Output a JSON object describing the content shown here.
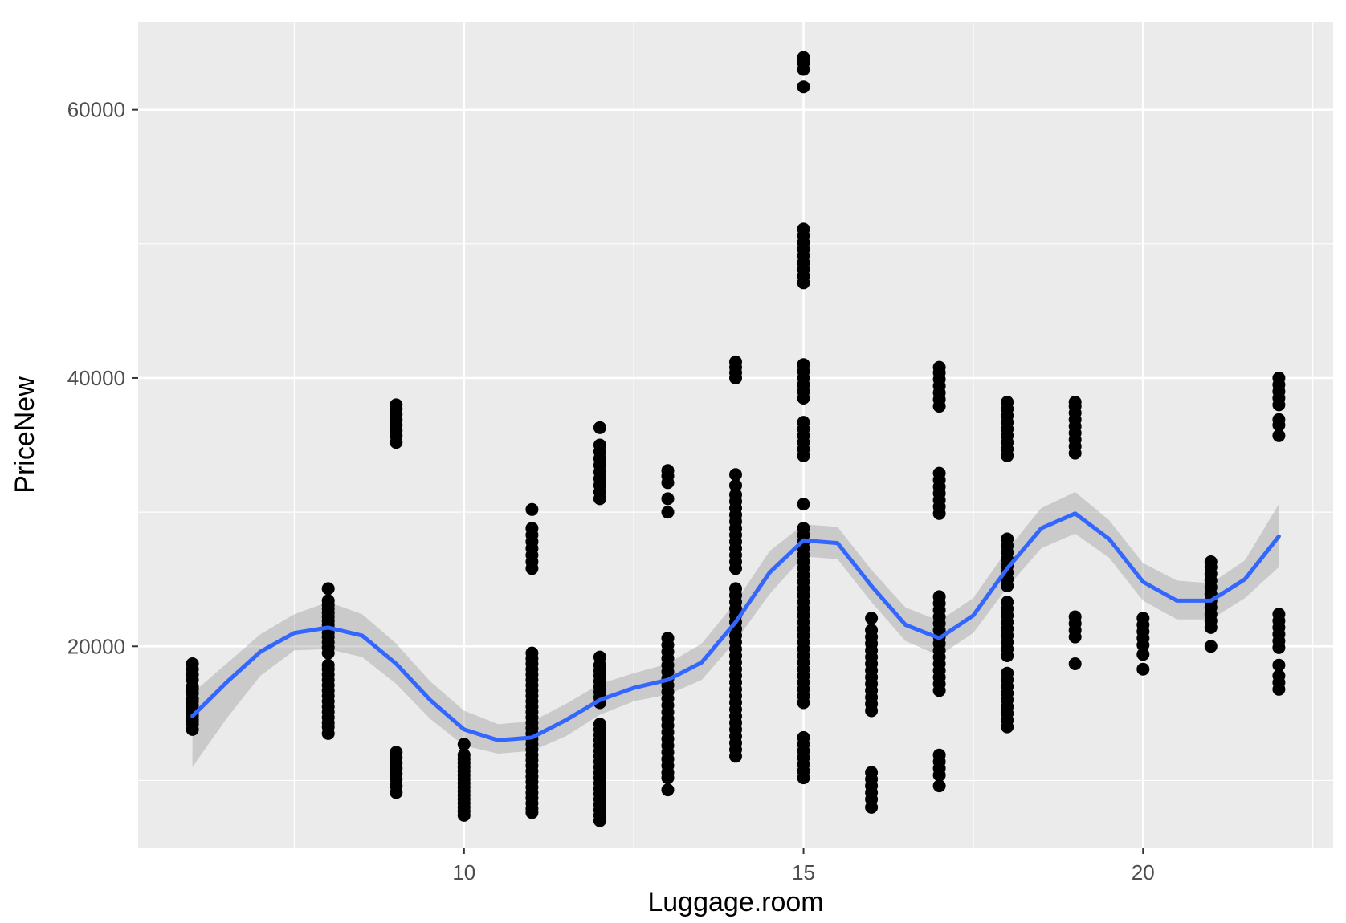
{
  "chart_data": {
    "type": "scatter",
    "title": "",
    "xlabel": "Luggage.room",
    "ylabel": "PriceNew",
    "xlim": [
      5.2,
      22.8
    ],
    "ylim": [
      5000,
      66500
    ],
    "x_ticks": [
      10,
      15,
      20
    ],
    "x_tick_labels": [
      "10",
      "15",
      "20"
    ],
    "y_ticks": [
      20000,
      40000,
      60000
    ],
    "y_tick_labels": [
      "20000",
      "40000",
      "60000"
    ],
    "x_minor_breaks": [
      7.5,
      12.5,
      17.5,
      22.5
    ],
    "y_minor_breaks": [
      10000,
      30000,
      50000
    ],
    "grid": true,
    "legend": "none",
    "colors": {
      "panel_background": "#ebebeb",
      "grid": "#ffffff",
      "points": "#000000",
      "smooth_line": "#3366ff",
      "confidence_band": "#999999"
    },
    "series": [
      {
        "type": "points",
        "groups": [
          {
            "x": 6,
            "values": [
              13800,
              14200,
              14500,
              14800,
              15000,
              15300,
              15600,
              15900,
              16100,
              16500,
              16800,
              17000,
              17500,
              17900,
              18300,
              18700
            ]
          },
          {
            "x": 8,
            "values": [
              13500,
              14000,
              14300,
              14700,
              15100,
              15500,
              15900,
              16300,
              16700,
              17100,
              17500,
              17900,
              18300,
              18600,
              19500,
              19900,
              20300,
              20700,
              21000,
              21300,
              21600,
              21900,
              22200,
              22500,
              22800,
              23100,
              23400,
              24300
            ]
          },
          {
            "x": 9,
            "values": [
              9100,
              9600,
              10100,
              10500,
              10900,
              11300,
              11700,
              12100,
              35200,
              35700,
              36100,
              36500,
              36900,
              37300,
              37700,
              38000
            ]
          },
          {
            "x": 10,
            "values": [
              7400,
              7700,
              8000,
              8300,
              8600,
              8900,
              9200,
              9500,
              9800,
              10100,
              10400,
              10700,
              11000,
              11300,
              11600,
              11900,
              12700
            ]
          },
          {
            "x": 11,
            "values": [
              7600,
              7900,
              8300,
              8700,
              9100,
              9500,
              9900,
              10300,
              10700,
              11100,
              11500,
              11900,
              12300,
              12700,
              13100,
              13500,
              13900,
              14300,
              14700,
              15100,
              15500,
              15900,
              16300,
              16700,
              17100,
              17500,
              17900,
              18300,
              18700,
              19100,
              19500,
              25800,
              26300,
              26800,
              27300,
              27800,
              28300,
              28800,
              30200
            ]
          },
          {
            "x": 12,
            "values": [
              7000,
              7400,
              7800,
              8200,
              8600,
              9000,
              9400,
              9800,
              10200,
              10600,
              11000,
              11400,
              11800,
              12200,
              12600,
              13000,
              13400,
              13800,
              14200,
              15800,
              16200,
              16600,
              17000,
              17400,
              17800,
              18200,
              18600,
              19200,
              31000,
              31500,
              32000,
              32500,
              33000,
              33500,
              34000,
              34500,
              35000,
              36300
            ]
          },
          {
            "x": 13,
            "values": [
              9300,
              10200,
              10600,
              11100,
              11600,
              12100,
              12600,
              13100,
              13600,
              14100,
              14600,
              15100,
              15600,
              16100,
              16600,
              17100,
              17600,
              18100,
              18600,
              19100,
              19600,
              20100,
              20600,
              30000,
              31000,
              32200,
              32700,
              33100
            ]
          },
          {
            "x": 14,
            "values": [
              11800,
              12300,
              12800,
              13300,
              13800,
              14300,
              14800,
              15300,
              15800,
              16300,
              16800,
              17300,
              17800,
              18300,
              18800,
              19300,
              19800,
              20300,
              20800,
              21300,
              21800,
              22300,
              22800,
              23300,
              23800,
              24300,
              25800,
              26300,
              26800,
              27300,
              27800,
              28300,
              28800,
              29300,
              29800,
              30300,
              30800,
              31300,
              32000,
              32800,
              40000,
              40400,
              40800,
              41200
            ]
          },
          {
            "x": 15,
            "values": [
              10200,
              10700,
              11200,
              11700,
              12200,
              12700,
              13200,
              15800,
              16300,
              16800,
              17300,
              17800,
              18300,
              18800,
              19300,
              19800,
              20300,
              20800,
              21300,
              21800,
              22300,
              22800,
              23300,
              23800,
              24300,
              24800,
              25300,
              25800,
              26300,
              26800,
              27300,
              27800,
              28300,
              28800,
              30600,
              34200,
              34700,
              35200,
              35700,
              36200,
              36700,
              38500,
              39000,
              39500,
              40000,
              40500,
              41000,
              47100,
              47600,
              48100,
              48600,
              49100,
              49600,
              50100,
              50600,
              51100,
              61700,
              63000,
              63500,
              63900
            ]
          },
          {
            "x": 16,
            "values": [
              8000,
              8600,
              9100,
              9600,
              10100,
              10600,
              15200,
              15700,
              16200,
              16700,
              17200,
              17700,
              18200,
              18700,
              19200,
              19700,
              20200,
              20700,
              21200,
              22100
            ]
          },
          {
            "x": 17,
            "values": [
              9600,
              10400,
              10900,
              11400,
              11900,
              16700,
              17200,
              17700,
              18200,
              18700,
              19200,
              19700,
              20200,
              20700,
              21200,
              21700,
              22200,
              22700,
              23200,
              23700,
              29900,
              30400,
              30900,
              31400,
              31900,
              32400,
              32900,
              37900,
              38400,
              38900,
              39400,
              39900,
              40400,
              40800
            ]
          },
          {
            "x": 18,
            "values": [
              14000,
              14500,
              15000,
              15500,
              16000,
              16500,
              17000,
              17500,
              18000,
              19300,
              19800,
              20300,
              20800,
              21300,
              21800,
              22300,
              22800,
              23300,
              24500,
              25000,
              25500,
              26000,
              26500,
              27000,
              27500,
              28000,
              34200,
              34700,
              35200,
              35700,
              36200,
              36700,
              37200,
              37700,
              38200
            ]
          },
          {
            "x": 19,
            "values": [
              18700,
              20700,
              21200,
              21700,
              22200,
              34400,
              34900,
              35400,
              35900,
              36400,
              36900,
              37400,
              37900,
              38200
            ]
          },
          {
            "x": 20,
            "values": [
              18300,
              19400,
              20100,
              20600,
              21100,
              21600,
              22100
            ]
          },
          {
            "x": 21,
            "values": [
              20000,
              21400,
              21900,
              22400,
              22900,
              23400,
              23900,
              24400,
              24900,
              25400,
              25900,
              26300
            ]
          },
          {
            "x": 22,
            "values": [
              16800,
              17300,
              17800,
              18600,
              19900,
              20400,
              20900,
              21400,
              21900,
              22400,
              35700,
              36500,
              36900,
              38000,
              38500,
              39000,
              39500,
              40000
            ]
          }
        ]
      },
      {
        "type": "smooth",
        "x": [
          6,
          6.5,
          7,
          7.5,
          8,
          8.5,
          9,
          9.5,
          10,
          10.5,
          11,
          11.5,
          12,
          12.5,
          13,
          13.5,
          14,
          14.5,
          15,
          15.5,
          16,
          16.5,
          17,
          17.5,
          18,
          18.5,
          19,
          19.5,
          20,
          20.5,
          21,
          21.5,
          22
        ],
        "values": [
          14800,
          17300,
          19600,
          21000,
          21400,
          20800,
          18700,
          16000,
          13800,
          13000,
          13200,
          14500,
          16000,
          16900,
          17500,
          18800,
          21800,
          25500,
          27900,
          27700,
          24500,
          21600,
          20600,
          22300,
          25800,
          28800,
          29900,
          28000,
          24800,
          23400,
          23400,
          25000,
          28200
        ],
        "band_upper": [
          16500,
          18700,
          20900,
          22400,
          23300,
          22400,
          20200,
          17400,
          15200,
          14200,
          14400,
          15700,
          17200,
          18000,
          18700,
          20200,
          23300,
          27100,
          29100,
          28900,
          25700,
          22900,
          21900,
          23600,
          27200,
          30300,
          31500,
          29400,
          26200,
          24900,
          24700,
          26400,
          30600
        ],
        "band_lower": [
          11000,
          14600,
          17800,
          19700,
          19800,
          19200,
          17200,
          14600,
          12600,
          12000,
          12200,
          13300,
          14900,
          15900,
          16400,
          17500,
          20400,
          23900,
          26700,
          26500,
          23300,
          20400,
          19300,
          21000,
          24400,
          27300,
          28400,
          26600,
          23400,
          22000,
          22000,
          23600,
          25900
        ]
      }
    ]
  }
}
